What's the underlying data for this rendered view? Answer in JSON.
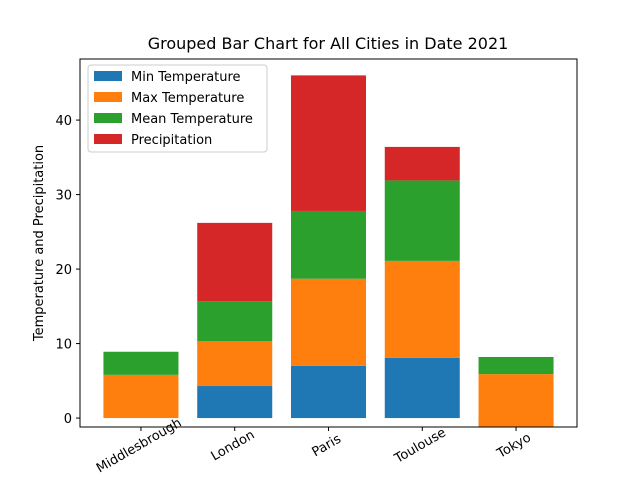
{
  "chart_data": {
    "type": "stacked_bar",
    "title": "Grouped Bar Chart for All Cities in Date 2021",
    "y_label": "Temperature and Precipitation",
    "categories": [
      "Middlesbrough",
      "London",
      "Paris",
      "Toulouse",
      "Tokyo"
    ],
    "series": [
      {
        "name": "Min Temperature",
        "color": "#1f77b4",
        "values": [
          0,
          4.3,
          7.0,
          8.1,
          -2.0
        ]
      },
      {
        "name": "Max Temperature",
        "color": "#ff7f0e",
        "values": [
          5.8,
          6.0,
          11.7,
          13.0,
          7.9
        ]
      },
      {
        "name": "Mean Temperature",
        "color": "#2ca02c",
        "values": [
          3.1,
          5.4,
          9.1,
          10.8,
          2.3
        ]
      },
      {
        "name": "Precipitation",
        "color": "#d62728",
        "values": [
          0,
          10.5,
          18.2,
          4.5,
          0
        ]
      }
    ],
    "ylim": [
      -1.2,
      48.2
    ],
    "yticks": [
      0,
      10,
      20,
      30,
      40
    ],
    "grid": false,
    "legend": "upper left"
  }
}
